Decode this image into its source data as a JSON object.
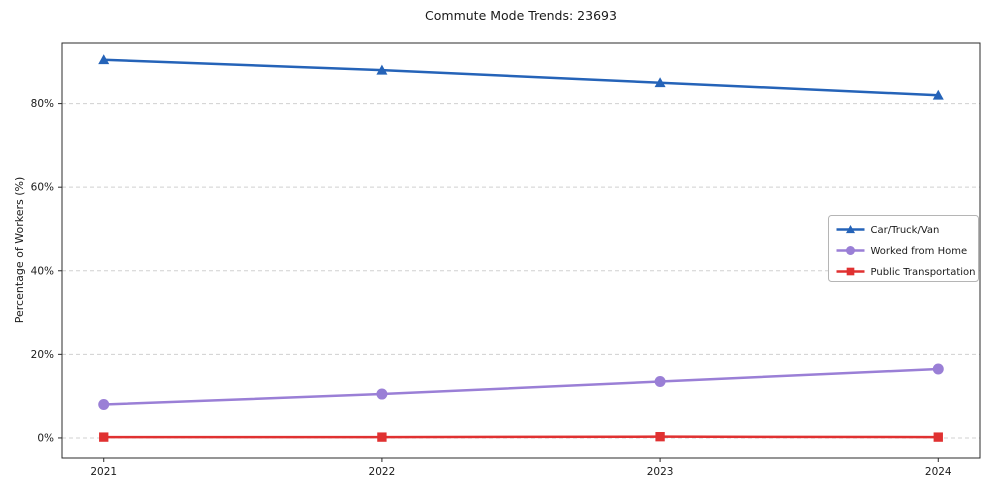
{
  "chart_data": {
    "type": "line",
    "title": "Commute Mode Trends: 23693",
    "xlabel": "",
    "ylabel": "Percentage of Workers (%)",
    "x": [
      2021,
      2022,
      2023,
      2024
    ],
    "x_tick_labels": [
      "2021",
      "2022",
      "2023",
      "2024"
    ],
    "y_ticks": [
      0,
      20,
      40,
      60,
      80
    ],
    "y_tick_labels": [
      "0%",
      "20%",
      "40%",
      "60%",
      "80%"
    ],
    "xlim": [
      2020.85,
      2024.15
    ],
    "ylim": [
      -4.8,
      94.5
    ],
    "grid": true,
    "grid_style": "dashed-horizontal",
    "legend_position": "center-right",
    "series": [
      {
        "name": "Car/Truck/Van",
        "color": "#2563b8",
        "marker": "triangle",
        "values": [
          90.5,
          88.0,
          85.0,
          82.0
        ]
      },
      {
        "name": "Worked from Home",
        "color": "#9a7fd6",
        "marker": "circle",
        "values": [
          8.0,
          10.5,
          13.5,
          16.5
        ]
      },
      {
        "name": "Public Transportation",
        "color": "#e03131",
        "marker": "square",
        "values": [
          0.2,
          0.2,
          0.3,
          0.2
        ]
      }
    ],
    "colors": {
      "grid": "#d0d0d0",
      "spine": "#2b2b2b",
      "tick_text": "#1a1a1a",
      "legend_border": "#b5b5b5",
      "background": "#ffffff"
    }
  }
}
